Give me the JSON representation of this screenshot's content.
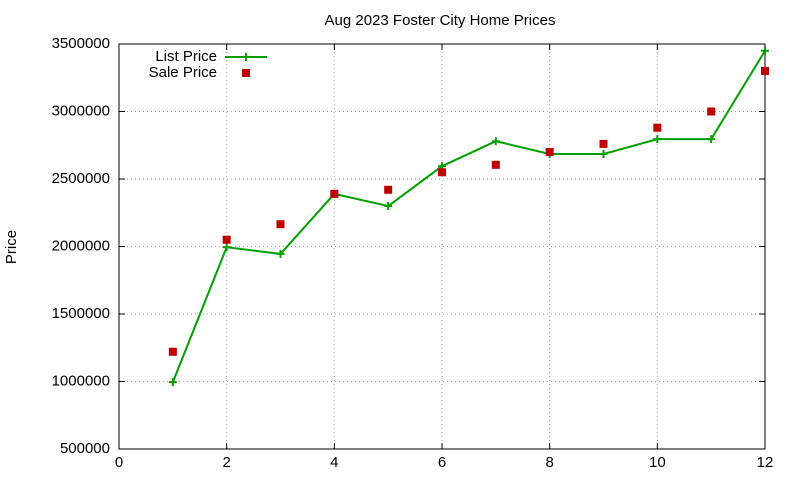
{
  "chart_data": {
    "type": "line",
    "title": "Aug 2023 Foster City Home Prices",
    "y_label": "Price",
    "x": [
      1,
      2,
      3,
      4,
      5,
      6,
      7,
      8,
      9,
      10,
      11,
      12
    ],
    "series": [
      {
        "name": "List Price",
        "color": "#00a000",
        "mode": "linespoints",
        "values": [
          995000,
          1995000,
          1945000,
          2390000,
          2300000,
          2595000,
          2780000,
          2685000,
          2685000,
          2795000,
          2795000,
          3450000
        ]
      },
      {
        "name": "Sale Price",
        "color": "#c00000",
        "mode": "points",
        "values": [
          1220000,
          2050000,
          2165000,
          2390000,
          2420000,
          2550000,
          2605000,
          2700000,
          2760000,
          2880000,
          3000000,
          3300000
        ]
      }
    ],
    "xlim": [
      0,
      12
    ],
    "xticks": [
      0,
      2,
      4,
      6,
      8,
      10,
      12
    ],
    "ylim": [
      500000,
      3500000
    ],
    "yticks": [
      500000,
      1000000,
      1500000,
      2000000,
      2500000,
      3000000,
      3500000
    ],
    "grid": true,
    "legend": "top-left"
  }
}
